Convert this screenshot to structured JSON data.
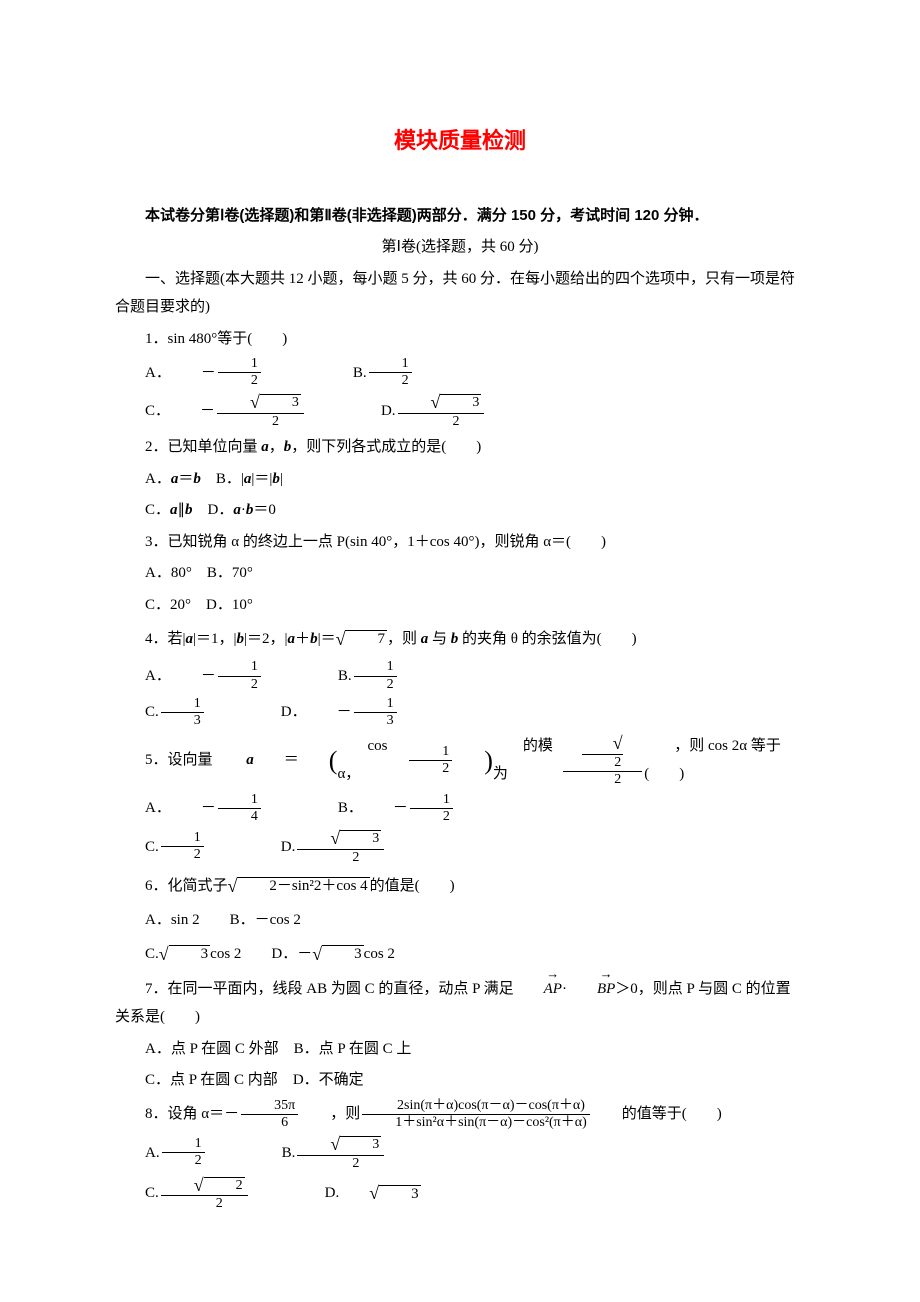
{
  "title": "模块质量检测",
  "intro": "本试卷分第Ⅰ卷(选择题)和第Ⅱ卷(非选择题)两部分．满分 150 分，考试时间 120 分钟．",
  "section1_header": "第Ⅰ卷(选择题，共 60 分)",
  "section1_desc": "一、选择题(本大题共 12 小题，每小题 5 分，共 60 分．在每小题给出的四个选项中，只有一项是符合题目要求的)",
  "q1": {
    "stem": "1．sin 480°等于(　　)",
    "A": "A．",
    "B": "B.",
    "C": "C．",
    "D": "D."
  },
  "q2": {
    "stem_pre": "2．已知单位向量 ",
    "stem_mid": "，",
    "stem_post": "，则下列各式成立的是(　　)",
    "A_pre": "A．",
    "B_pre": "B．",
    "C_pre": "C．",
    "D_pre": "D．"
  },
  "q3": {
    "stem": "3．已知锐角 α 的终边上一点 P(sin 40°，1＋cos 40°)，则锐角 α＝(　　)",
    "A": "A．80°",
    "B": "B．70°",
    "C": "C．20°",
    "D": "D．10°"
  },
  "q4": {
    "stem_pre": "4．若|",
    "stem_2": "|＝1，|",
    "stem_3": "|＝2，|",
    "stem_4": "＋",
    "stem_5": "|＝",
    "stem_6": "，则 ",
    "stem_7": " 与 ",
    "stem_8": " 的夹角 θ 的余弦值为(　　)",
    "A": "A．",
    "B": "B.",
    "C": "C.",
    "D": "D．"
  },
  "q5": {
    "stem_pre": "5．设向量 ",
    "stem_2": "＝",
    "stem_3": "cos α，",
    "stem_4": "的模为",
    "stem_5": "，则 cos 2α 等于(　　)",
    "A": "A．",
    "B": "B．",
    "C": "C.",
    "D": "D."
  },
  "q6": {
    "stem_pre": "6．化简式子",
    "stem_post": "的值是(　　)",
    "sqrt_inner": "2－sin²2＋cos 4",
    "A": "A．sin 2",
    "B": "B．－cos 2",
    "C_pre": "C.",
    "C_post": "cos 2",
    "D_pre": "D．－",
    "D_post": "cos 2"
  },
  "q7": {
    "stem_pre": "7．在同一平面内，线段 AB 为圆 C 的直径，动点 P 满足",
    "stem_post": "＞0，则点 P 与圆 C 的位置关系是(　　)",
    "A": "A．点 P 在圆 C 外部",
    "B": "B．点 P 在圆 C 上",
    "C": "C．点 P 在圆 C 内部",
    "D": "D．不确定"
  },
  "q8": {
    "stem_pre": "8．设角 α＝－",
    "stem_mid": "，则",
    "frac_num": "2sin(π＋α)cos(π－α)－cos(π＋α)",
    "frac_den": "1＋sin²α＋sin(π－α)－cos²(π＋α)",
    "stem_post": "的值等于(　　)",
    "num35pi": "35π",
    "den6": "6",
    "A": "A.",
    "B": "B.",
    "C": "C.",
    "D": "D."
  },
  "sqrt3": "3",
  "sqrt7": "7",
  "sqrt2": "2",
  "num1": "1",
  "num2": "2",
  "num3": "3",
  "num4": "4"
}
